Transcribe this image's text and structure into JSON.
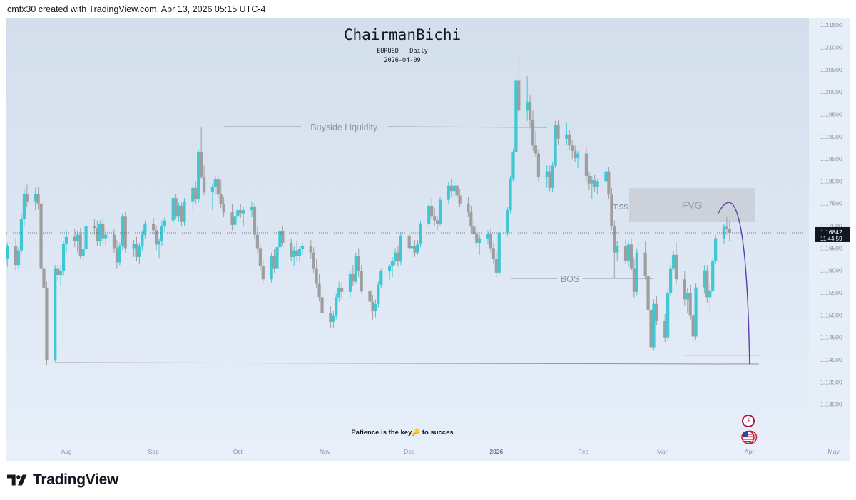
{
  "header": {
    "text": "cmfx30 created with TradingView.com, Apr 13, 2026 05:15 UTC-4"
  },
  "chart_title": "ChairmanBichi",
  "chart_subtitle": "EURUSD | Daily",
  "chart_date": "2026-04-09",
  "chart_note": "Patience is the key🔑 to succes",
  "brand": {
    "wordmark": "TradingView"
  },
  "colors": {
    "up": "#3fc7d2",
    "down": "#9e9e9e",
    "bg_top": "#d3deec",
    "bg_bottom": "#e6eef9",
    "annotation": "#8e959f",
    "arc": "#5b3fb0",
    "fvg_box": "#c9ced6",
    "price_label_bg": "#131722"
  },
  "icons": {
    "event": "bolt-icon",
    "country": "us-flag-icon",
    "logo": "tradingview-logo-icon"
  },
  "chart_data": {
    "type": "candlestick",
    "symbol": "EURUSD",
    "interval": "Daily",
    "ylim": [
      1.125,
      1.2155
    ],
    "y_ticks": [
      "1.21500",
      "1.21000",
      "1.20500",
      "1.20000",
      "1.19500",
      "1.19000",
      "1.18500",
      "1.18000",
      "1.17500",
      "1.17000",
      "1.16500",
      "1.16000",
      "1.15500",
      "1.15000",
      "1.14500",
      "1.14000",
      "1.13500",
      "1.13000"
    ],
    "x_ticks": [
      {
        "label": "Aug",
        "date": "2025-08-01"
      },
      {
        "label": "Sep",
        "date": "2025-09-01"
      },
      {
        "label": "Oct",
        "date": "2025-10-01"
      },
      {
        "label": "Nov",
        "date": "2025-11-01"
      },
      {
        "label": "Dec",
        "date": "2025-12-01"
      },
      {
        "label": "2026",
        "date": "2026-01-01"
      },
      {
        "label": "Feb",
        "date": "2026-02-01"
      },
      {
        "label": "Mar",
        "date": "2026-03-01"
      },
      {
        "label": "Apr",
        "date": "2026-04-01"
      },
      {
        "label": "May",
        "date": "2026-05-01"
      }
    ],
    "first_date": "2025-07-04",
    "last_price": "1.16842",
    "countdown": "11:44:59",
    "candles": [
      [
        1.1715,
        1.1728,
        1.169,
        1.17
      ],
      [
        1.17,
        1.1712,
        1.167,
        1.1685
      ],
      [
        1.1685,
        1.1695,
        1.164,
        1.165
      ],
      [
        1.165,
        1.1682,
        1.1628,
        1.1672
      ],
      [
        1.1672,
        1.1688,
        1.1612,
        1.1625
      ],
      [
        1.1625,
        1.1662,
        1.1608,
        1.1655
      ],
      [
        1.1655,
        1.1672,
        1.16,
        1.1612
      ],
      [
        1.1612,
        1.1652,
        1.1605,
        1.1645
      ],
      [
        1.1645,
        1.1725,
        1.1638,
        1.1715
      ],
      [
        1.1715,
        1.1782,
        1.1698,
        1.1772
      ],
      [
        1.1772,
        1.1792,
        1.1742,
        1.1755
      ],
      [
        1.1755,
        1.1785,
        1.1735,
        1.1772
      ],
      [
        1.1772,
        1.1788,
        1.1738,
        1.175
      ],
      [
        1.175,
        1.1768,
        1.1595,
        1.1605
      ],
      [
        1.1605,
        1.1612,
        1.155,
        1.156
      ],
      [
        1.156,
        1.1575,
        1.1388,
        1.14
      ],
      [
        1.14,
        1.1612,
        1.1395,
        1.1605
      ],
      [
        1.1605,
        1.1612,
        1.1575,
        1.159
      ],
      [
        1.159,
        1.1612,
        1.1565,
        1.1598
      ],
      [
        1.1598,
        1.1665,
        1.1588,
        1.166
      ],
      [
        1.166,
        1.169,
        1.164,
        1.1675
      ],
      [
        1.1675,
        1.1692,
        1.1652,
        1.1665
      ],
      [
        1.1665,
        1.1688,
        1.164,
        1.168
      ],
      [
        1.168,
        1.1695,
        1.1625,
        1.1632
      ],
      [
        1.1632,
        1.1665,
        1.162,
        1.1648
      ],
      [
        1.1648,
        1.171,
        1.164,
        1.17
      ],
      [
        1.17,
        1.1715,
        1.168,
        1.1695
      ],
      [
        1.1695,
        1.1712,
        1.1655,
        1.1665
      ],
      [
        1.1665,
        1.1712,
        1.1655,
        1.1705
      ],
      [
        1.1705,
        1.1718,
        1.1662,
        1.1672
      ],
      [
        1.1672,
        1.169,
        1.1655,
        1.168
      ],
      [
        1.168,
        1.1692,
        1.164,
        1.165
      ],
      [
        1.165,
        1.1668,
        1.1605,
        1.1618
      ],
      [
        1.1618,
        1.1662,
        1.1612,
        1.1655
      ],
      [
        1.1655,
        1.1728,
        1.1645,
        1.1722
      ],
      [
        1.1722,
        1.1732,
        1.164,
        1.165
      ],
      [
        1.165,
        1.1668,
        1.163,
        1.166
      ],
      [
        1.166,
        1.1675,
        1.162,
        1.163
      ],
      [
        1.163,
        1.1662,
        1.1615,
        1.1655
      ],
      [
        1.1655,
        1.169,
        1.1645,
        1.168
      ],
      [
        1.168,
        1.1712,
        1.167,
        1.1705
      ],
      [
        1.1705,
        1.1718,
        1.168,
        1.169
      ],
      [
        1.169,
        1.17,
        1.1645,
        1.1658
      ],
      [
        1.1658,
        1.1672,
        1.1628,
        1.1665
      ],
      [
        1.1665,
        1.1712,
        1.1655,
        1.17
      ],
      [
        1.17,
        1.172,
        1.1685,
        1.1712
      ],
      [
        1.1712,
        1.1768,
        1.17,
        1.1762
      ],
      [
        1.1762,
        1.1772,
        1.1715,
        1.1722
      ],
      [
        1.1722,
        1.1752,
        1.171,
        1.1745
      ],
      [
        1.1745,
        1.1752,
        1.17,
        1.171
      ],
      [
        1.171,
        1.1762,
        1.17,
        1.1755
      ],
      [
        1.1755,
        1.1792,
        1.1735,
        1.1785
      ],
      [
        1.1785,
        1.18,
        1.1748,
        1.176
      ],
      [
        1.176,
        1.187,
        1.1752,
        1.1865
      ],
      [
        1.1865,
        1.192,
        1.1805,
        1.181
      ],
      [
        1.181,
        1.1835,
        1.1768,
        1.1775
      ],
      [
        1.1775,
        1.1795,
        1.1735,
        1.1788
      ],
      [
        1.1788,
        1.1812,
        1.177,
        1.1805
      ],
      [
        1.1805,
        1.1815,
        1.176,
        1.177
      ],
      [
        1.177,
        1.1802,
        1.174,
        1.1748
      ],
      [
        1.1748,
        1.1765,
        1.172,
        1.173
      ],
      [
        1.173,
        1.1748,
        1.169,
        1.1702
      ],
      [
        1.1702,
        1.1732,
        1.1695,
        1.1722
      ],
      [
        1.1722,
        1.1742,
        1.1712,
        1.1735
      ],
      [
        1.1735,
        1.1748,
        1.1718,
        1.1728
      ],
      [
        1.1728,
        1.1742,
        1.17,
        1.1735
      ],
      [
        1.1735,
        1.1755,
        1.172,
        1.1742
      ],
      [
        1.1742,
        1.175,
        1.167,
        1.168
      ],
      [
        1.168,
        1.17,
        1.164,
        1.165
      ],
      [
        1.165,
        1.166,
        1.1598,
        1.161
      ],
      [
        1.161,
        1.1625,
        1.157,
        1.158
      ],
      [
        1.158,
        1.164,
        1.1572,
        1.1632
      ],
      [
        1.1632,
        1.1648,
        1.1595,
        1.1605
      ],
      [
        1.1605,
        1.166,
        1.1595,
        1.1652
      ],
      [
        1.1652,
        1.1695,
        1.1645,
        1.1688
      ],
      [
        1.1688,
        1.17,
        1.1655,
        1.1662
      ],
      [
        1.1662,
        1.1672,
        1.162,
        1.163
      ],
      [
        1.163,
        1.1655,
        1.161,
        1.1645
      ],
      [
        1.1645,
        1.1665,
        1.1622,
        1.1632
      ],
      [
        1.1632,
        1.1655,
        1.1618,
        1.1648
      ],
      [
        1.1648,
        1.1662,
        1.1635,
        1.1655
      ],
      [
        1.1655,
        1.1668,
        1.1625,
        1.164
      ],
      [
        1.164,
        1.1652,
        1.1595,
        1.1605
      ],
      [
        1.1605,
        1.1625,
        1.156,
        1.157
      ],
      [
        1.157,
        1.1592,
        1.153,
        1.154
      ],
      [
        1.154,
        1.1555,
        1.1495,
        1.1505
      ],
      [
        1.1505,
        1.152,
        1.1472,
        1.1485
      ],
      [
        1.1485,
        1.151,
        1.147,
        1.15
      ],
      [
        1.15,
        1.1548,
        1.149,
        1.154
      ],
      [
        1.154,
        1.1575,
        1.153,
        1.156
      ],
      [
        1.156,
        1.1572,
        1.1535,
        1.1552
      ],
      [
        1.1552,
        1.16,
        1.154,
        1.1592
      ],
      [
        1.1592,
        1.1612,
        1.1565,
        1.1575
      ],
      [
        1.1575,
        1.164,
        1.157,
        1.1632
      ],
      [
        1.1632,
        1.165,
        1.1585,
        1.1598
      ],
      [
        1.1598,
        1.1612,
        1.1548,
        1.1555
      ],
      [
        1.1555,
        1.1575,
        1.152,
        1.153
      ],
      [
        1.153,
        1.1545,
        1.149,
        1.151
      ],
      [
        1.151,
        1.1535,
        1.1495,
        1.1525
      ],
      [
        1.1525,
        1.1575,
        1.1515,
        1.1568
      ],
      [
        1.1568,
        1.1605,
        1.156,
        1.1598
      ],
      [
        1.1598,
        1.1615,
        1.158,
        1.161
      ],
      [
        1.161,
        1.163,
        1.1585,
        1.1622
      ],
      [
        1.1622,
        1.165,
        1.1612,
        1.164
      ],
      [
        1.164,
        1.1655,
        1.161,
        1.162
      ],
      [
        1.162,
        1.1685,
        1.1612,
        1.1678
      ],
      [
        1.1678,
        1.169,
        1.164,
        1.165
      ],
      [
        1.165,
        1.1665,
        1.1628,
        1.1655
      ],
      [
        1.1655,
        1.1668,
        1.163,
        1.164
      ],
      [
        1.164,
        1.1668,
        1.1635,
        1.166
      ],
      [
        1.166,
        1.1712,
        1.1652,
        1.1705
      ],
      [
        1.1705,
        1.1752,
        1.1698,
        1.1745
      ],
      [
        1.1745,
        1.1762,
        1.1715,
        1.1722
      ],
      [
        1.1722,
        1.174,
        1.17,
        1.1712
      ],
      [
        1.1712,
        1.1722,
        1.169,
        1.1705
      ],
      [
        1.1705,
        1.1765,
        1.17,
        1.1758
      ],
      [
        1.1758,
        1.1798,
        1.175,
        1.179
      ],
      [
        1.179,
        1.1805,
        1.1765,
        1.1778
      ],
      [
        1.1778,
        1.1798,
        1.1765,
        1.179
      ],
      [
        1.179,
        1.18,
        1.176,
        1.1768
      ],
      [
        1.1768,
        1.1782,
        1.1742,
        1.175
      ],
      [
        1.175,
        1.1765,
        1.172,
        1.173
      ],
      [
        1.173,
        1.1745,
        1.1685,
        1.1698
      ],
      [
        1.1698,
        1.1712,
        1.1672,
        1.1682
      ],
      [
        1.1682,
        1.1695,
        1.1652,
        1.1662
      ],
      [
        1.1662,
        1.168,
        1.1635,
        1.1672
      ],
      [
        1.1672,
        1.169,
        1.166,
        1.1682
      ],
      [
        1.1682,
        1.1695,
        1.164,
        1.165
      ],
      [
        1.165,
        1.1662,
        1.1615,
        1.1625
      ],
      [
        1.1625,
        1.1642,
        1.1585,
        1.1595
      ],
      [
        1.1595,
        1.169,
        1.159,
        1.1685
      ],
      [
        1.1685,
        1.1742,
        1.1678,
        1.1735
      ],
      [
        1.1735,
        1.1812,
        1.1728,
        1.1805
      ],
      [
        1.1805,
        1.1872,
        1.18,
        1.1865
      ],
      [
        1.1865,
        1.203,
        1.186,
        1.2025
      ],
      [
        1.2025,
        1.2082,
        1.194,
        1.1958
      ],
      [
        1.1958,
        1.2035,
        1.1935,
        1.1978
      ],
      [
        1.1978,
        1.1992,
        1.192,
        1.1938
      ],
      [
        1.1938,
        1.196,
        1.1868,
        1.188
      ],
      [
        1.188,
        1.1912,
        1.1855,
        1.1862
      ],
      [
        1.1862,
        1.1872,
        1.18,
        1.181
      ],
      [
        1.181,
        1.1835,
        1.1785,
        1.1822
      ],
      [
        1.1822,
        1.1835,
        1.1778,
        1.1785
      ],
      [
        1.1785,
        1.1842,
        1.1775,
        1.1835
      ],
      [
        1.1835,
        1.1935,
        1.183,
        1.1925
      ],
      [
        1.1925,
        1.1938,
        1.1882,
        1.1895
      ],
      [
        1.1895,
        1.1932,
        1.188,
        1.1905
      ],
      [
        1.1905,
        1.1915,
        1.187,
        1.188
      ],
      [
        1.188,
        1.1892,
        1.185,
        1.1868
      ],
      [
        1.1868,
        1.188,
        1.1842,
        1.1852
      ],
      [
        1.1852,
        1.1868,
        1.183,
        1.1862
      ],
      [
        1.1862,
        1.1878,
        1.18,
        1.1812
      ],
      [
        1.1812,
        1.1822,
        1.178,
        1.1795
      ],
      [
        1.1795,
        1.1812,
        1.176,
        1.1802
      ],
      [
        1.1802,
        1.1815,
        1.1775,
        1.1788
      ],
      [
        1.1788,
        1.1805,
        1.177,
        1.18
      ],
      [
        1.18,
        1.1835,
        1.179,
        1.1822
      ],
      [
        1.1822,
        1.1832,
        1.176,
        1.177
      ],
      [
        1.177,
        1.1785,
        1.169,
        1.17
      ],
      [
        1.17,
        1.1712,
        1.1582,
        1.164
      ],
      [
        1.164,
        1.1665,
        1.162,
        1.1655
      ],
      [
        1.1655,
        1.1668,
        1.1615,
        1.1622
      ],
      [
        1.1622,
        1.1665,
        1.161,
        1.1658
      ],
      [
        1.1658,
        1.1672,
        1.1598,
        1.1605
      ],
      [
        1.1605,
        1.1628,
        1.154,
        1.1552
      ],
      [
        1.1552,
        1.165,
        1.1545,
        1.164
      ],
      [
        1.164,
        1.1665,
        1.158,
        1.1588
      ],
      [
        1.1588,
        1.1598,
        1.1502,
        1.1512
      ],
      [
        1.1512,
        1.1525,
        1.1408,
        1.1428
      ],
      [
        1.1428,
        1.1535,
        1.142,
        1.1525
      ],
      [
        1.1525,
        1.1542,
        1.1478,
        1.1488
      ],
      [
        1.1488,
        1.1502,
        1.144,
        1.145
      ],
      [
        1.145,
        1.1558,
        1.1442,
        1.155
      ],
      [
        1.155,
        1.1612,
        1.1542,
        1.1605
      ],
      [
        1.1605,
        1.1645,
        1.1598,
        1.1635
      ],
      [
        1.1635,
        1.1662,
        1.1568,
        1.158
      ],
      [
        1.158,
        1.1598,
        1.1522,
        1.1535
      ],
      [
        1.1535,
        1.156,
        1.1505,
        1.155
      ],
      [
        1.155,
        1.1568,
        1.149,
        1.15
      ],
      [
        1.15,
        1.1515,
        1.144,
        1.1452
      ],
      [
        1.1452,
        1.157,
        1.1445,
        1.1562
      ],
      [
        1.1562,
        1.1612,
        1.1548,
        1.16
      ],
      [
        1.16,
        1.1612,
        1.1528,
        1.154
      ],
      [
        1.154,
        1.1568,
        1.151,
        1.1555
      ],
      [
        1.1555,
        1.1628,
        1.1548,
        1.1622
      ],
      [
        1.1622,
        1.168,
        1.1615,
        1.1672
      ],
      [
        1.1672,
        1.1705,
        1.166,
        1.1698
      ],
      [
        1.1698,
        1.172,
        1.168,
        1.1692
      ],
      [
        1.1692,
        1.1712,
        1.1665,
        1.1684
      ]
    ],
    "annotations": {
      "buyside_liquidity": {
        "label": "Buyside Liquidity",
        "price": 1.1922,
        "from_index": 60,
        "to_index": 141
      },
      "bos": {
        "label": "BOS",
        "price": 1.1582,
        "from_index": 132,
        "to_index": 169
      },
      "mss": {
        "label": "mss"
      },
      "fvg": {
        "label": "FVG",
        "top": 1.1785,
        "bottom": 1.1708,
        "from_index": 163,
        "to_days_after": 9
      },
      "low_line": {
        "price": 1.1392,
        "from_index": 16
      },
      "recent_low_line": {
        "price": 1.141,
        "from_index": 176
      }
    }
  }
}
